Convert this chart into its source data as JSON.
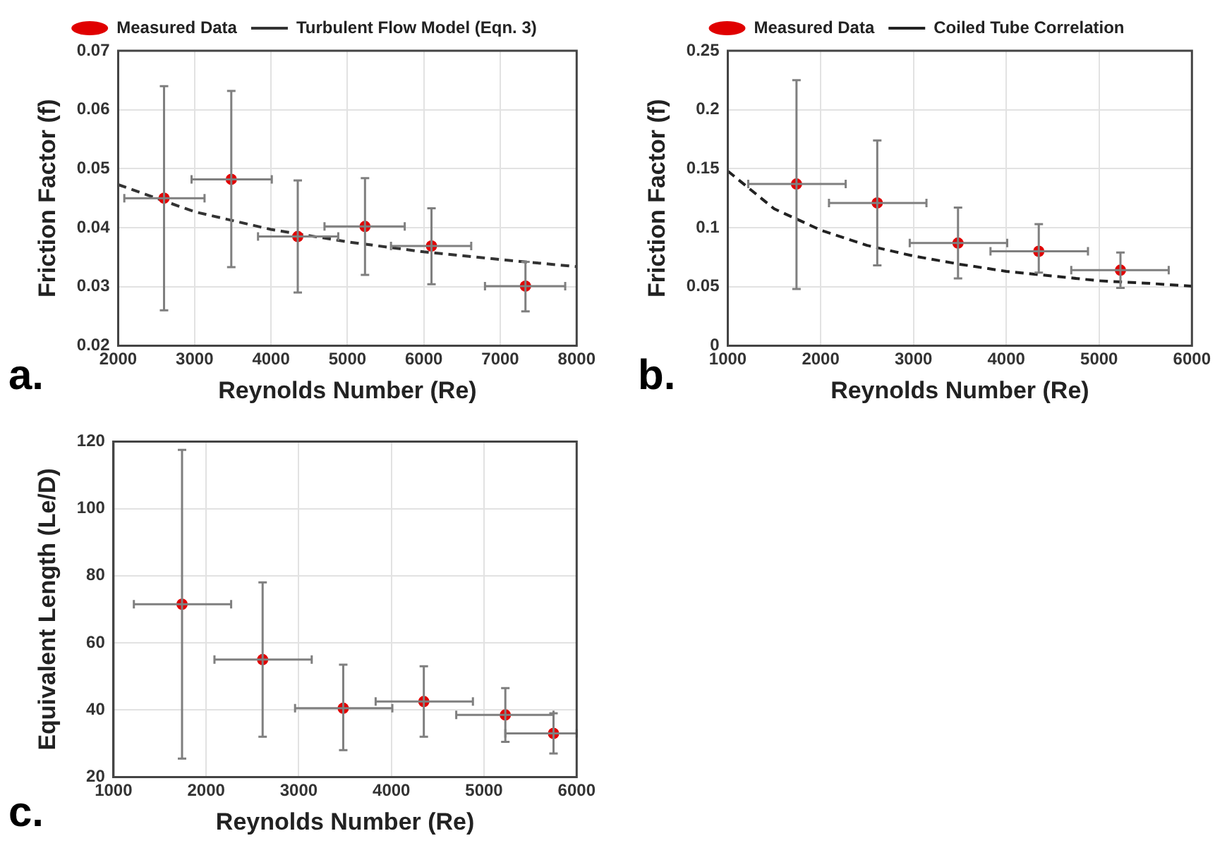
{
  "chart_data": [
    {
      "type": "scatter",
      "xlabel": "Reynolds Number (Re)",
      "ylabel": "Friction Factor (f)",
      "xlim": [
        2000,
        8000
      ],
      "xticks": [
        2000,
        3000,
        4000,
        5000,
        6000,
        7000,
        8000
      ],
      "ylim": [
        0.02,
        0.07
      ],
      "yticks": [
        0.02,
        0.03,
        0.04,
        0.05,
        0.06,
        0.07
      ],
      "grid": true,
      "legend": "top",
      "annotations": [
        "a."
      ],
      "series": [
        {
          "name": "Measured Data",
          "color": "#e00000",
          "marker": "circle",
          "x": [
            2600,
            3480,
            4350,
            5230,
            6100,
            7330
          ],
          "values": [
            0.045,
            0.0482,
            0.0385,
            0.0402,
            0.0369,
            0.0301
          ],
          "errors": [
            [
              0.026,
              0.064
            ],
            [
              0.0333,
              0.0632
            ],
            [
              0.029,
              0.048
            ],
            [
              0.032,
              0.0484
            ],
            [
              0.0304,
              0.0433
            ],
            [
              0.0258,
              0.0342
            ]
          ],
          "xerrors": [
            [
              2080,
              3130
            ],
            [
              2960,
              4010
            ],
            [
              3830,
              4880
            ],
            [
              4700,
              5750
            ],
            [
              5570,
              6620
            ],
            [
              6800,
              7850
            ]
          ]
        },
        {
          "name": "Turbulent Flow Model (Eqn. 3)",
          "type": "line",
          "line_style": "dashed",
          "marker": "none",
          "color": "#333333",
          "x": [
            2000,
            3000,
            4000,
            5000,
            6000,
            7000,
            8000
          ],
          "values": [
            0.0473,
            0.0427,
            0.0397,
            0.0376,
            0.0359,
            0.0346,
            0.0334
          ]
        }
      ]
    },
    {
      "type": "scatter",
      "xlabel": "Reynolds Number (Re)",
      "ylabel": "Friction Factor (f)",
      "xlim": [
        1000,
        6000
      ],
      "xticks": [
        1000,
        2000,
        3000,
        4000,
        5000,
        6000
      ],
      "ylim": [
        0,
        0.25
      ],
      "yticks": [
        0,
        0.05,
        0.1,
        0.15,
        0.2,
        0.25
      ],
      "grid": true,
      "legend": "top",
      "annotations": [
        "b."
      ],
      "series": [
        {
          "name": "Measured Data",
          "color": "#e00000",
          "marker": "circle",
          "x": [
            1740,
            2610,
            3480,
            4350,
            5230
          ],
          "values": [
            0.137,
            0.121,
            0.087,
            0.08,
            0.064
          ],
          "errors": [
            [
              0.048,
              0.225
            ],
            [
              0.068,
              0.174
            ],
            [
              0.057,
              0.117
            ],
            [
              0.062,
              0.103
            ],
            [
              0.049,
              0.079
            ]
          ],
          "xerrors": [
            [
              1220,
              2270
            ],
            [
              2090,
              3140
            ],
            [
              2960,
              4010
            ],
            [
              3830,
              4880
            ],
            [
              4700,
              5750
            ]
          ]
        },
        {
          "name": "Coiled Tube Correlation",
          "type": "line",
          "line_style": "dashed",
          "marker": "none",
          "color": "#222222",
          "x": [
            1000,
            1500,
            2000,
            2500,
            3000,
            3500,
            4000,
            4500,
            5000,
            5500,
            6000
          ],
          "values": [
            0.148,
            0.116,
            0.098,
            0.085,
            0.076,
            0.069,
            0.063,
            0.059,
            0.055,
            0.053,
            0.0505
          ]
        }
      ]
    },
    {
      "type": "scatter",
      "xlabel": "Reynolds Number (Re)",
      "ylabel": "Equivalent Length (Le/D)",
      "xlim": [
        1000,
        6000
      ],
      "xticks": [
        1000,
        2000,
        3000,
        4000,
        5000,
        6000
      ],
      "ylim": [
        20,
        120
      ],
      "yticks": [
        20,
        40,
        60,
        80,
        100,
        120
      ],
      "grid": true,
      "annotations": [
        "c."
      ],
      "series": [
        {
          "color": "#e00000",
          "marker": "circle",
          "x": [
            1740,
            2610,
            3480,
            4350,
            5230,
            5750
          ],
          "values": [
            71.5,
            55,
            40.5,
            42.5,
            38.5,
            33
          ],
          "errors": [
            [
              25.5,
              117.5
            ],
            [
              32,
              78
            ],
            [
              28,
              53.5
            ],
            [
              32,
              53
            ],
            [
              30.5,
              46.5
            ],
            [
              27,
              39
            ]
          ],
          "xerrors": [
            [
              1220,
              2270
            ],
            [
              2090,
              3140
            ],
            [
              2960,
              4010
            ],
            [
              3830,
              4880
            ],
            [
              4700,
              5750
            ],
            [
              5230,
              6000
            ]
          ]
        }
      ]
    }
  ]
}
